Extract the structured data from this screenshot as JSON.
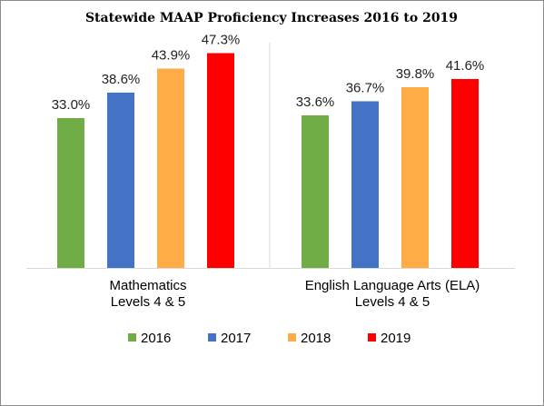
{
  "chart_data": {
    "type": "bar",
    "title": "Statewide MAAP Proficiency Increases 2016 to 2019",
    "categories": [
      [
        "Mathematics",
        "Levels 4 & 5"
      ],
      [
        "English Language Arts (ELA)",
        "Levels 4 & 5"
      ]
    ],
    "series": [
      {
        "name": "2016",
        "color": "#70ad47",
        "values": [
          33.0,
          33.6
        ],
        "labels": [
          "33.0%",
          "33.6%"
        ]
      },
      {
        "name": "2017",
        "color": "#4472c4",
        "values": [
          38.6,
          36.7
        ],
        "labels": [
          "38.6%",
          "36.7%"
        ]
      },
      {
        "name": "2018",
        "color": "#ffac47",
        "values": [
          43.9,
          39.8
        ],
        "labels": [
          "43.9%",
          "39.8%"
        ]
      },
      {
        "name": "2019",
        "color": "#ff0000",
        "values": [
          47.3,
          41.6
        ],
        "labels": [
          "47.3%",
          "41.6%"
        ]
      }
    ],
    "ylim": [
      0,
      50
    ],
    "grid": false,
    "legend_position": "bottom",
    "category_separator": true
  }
}
